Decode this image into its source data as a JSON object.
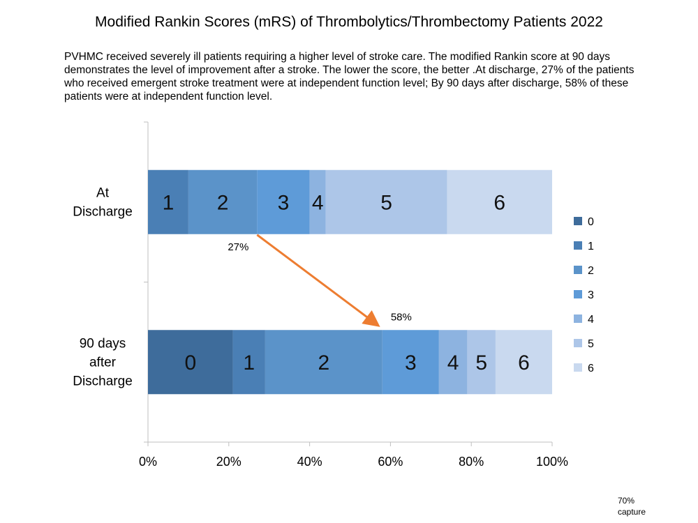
{
  "title": "Modified Rankin Scores (mRS) of Thrombolytics/Thrombectomy Patients 2022",
  "description": "PVHMC received severely ill patients requiring a higher level of stroke care. The modified Rankin score at 90 days demonstrates the level of improvement after a stroke. The lower the score, the better .At discharge, 27%  of the patients who received emergent stroke treatment were at independent function level; By 90 days after discharge,  58%  of these patients were at independent function level.",
  "footnote": {
    "line1": "70%",
    "line2": "capture"
  },
  "colors": {
    "s0": "#3e6c9b",
    "s1": "#4a7fb5",
    "s2": "#5b93c9",
    "s3": "#5e9bd8",
    "s4": "#8db3e0",
    "s5": "#adc6e8",
    "s6": "#c9d9ef",
    "arrow": "#ed7d31"
  },
  "chart_data": {
    "type": "bar",
    "orientation": "horizontal",
    "stacked": true,
    "categories": [
      "At Discharge",
      "90 days after Discharge"
    ],
    "series": [
      {
        "name": "0",
        "values": [
          0,
          21
        ]
      },
      {
        "name": "1",
        "values": [
          10,
          8
        ]
      },
      {
        "name": "2",
        "values": [
          17,
          29
        ]
      },
      {
        "name": "3",
        "values": [
          13,
          14
        ]
      },
      {
        "name": "4",
        "values": [
          4,
          7
        ]
      },
      {
        "name": "5",
        "values": [
          30,
          7
        ]
      },
      {
        "name": "6",
        "values": [
          26,
          14
        ]
      }
    ],
    "xlim": [
      0,
      100
    ],
    "xticks": [
      "0%",
      "20%",
      "40%",
      "60%",
      "80%",
      "100%"
    ],
    "legend_position": "right",
    "grid": false,
    "annotations": [
      {
        "text": "27%",
        "category": "At Discharge",
        "value": 27
      },
      {
        "text": "58%",
        "category": "90 days after Discharge",
        "value": 58
      }
    ]
  }
}
